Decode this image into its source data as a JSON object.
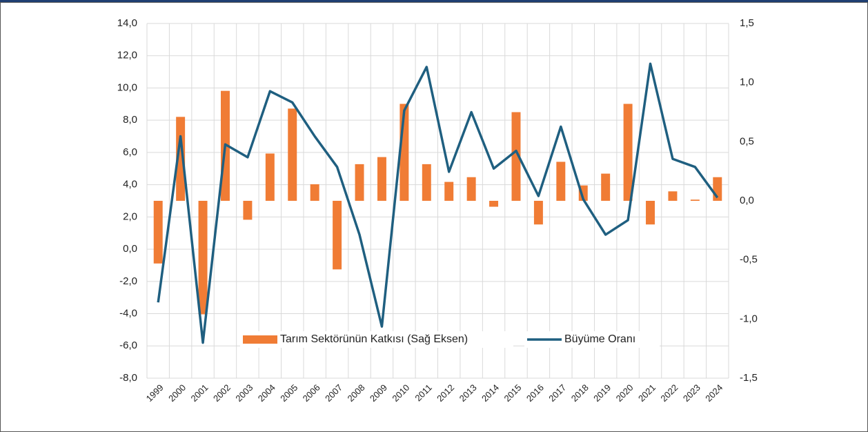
{
  "chart_data": {
    "type": "bar_line",
    "categories": [
      "1999",
      "2000",
      "2001",
      "2002",
      "2003",
      "2004",
      "2005",
      "2006",
      "2007",
      "2008",
      "2009",
      "2010",
      "2011",
      "2012",
      "2013",
      "2014",
      "2015",
      "2016",
      "2017",
      "2018",
      "2019",
      "2020",
      "2021",
      "2022",
      "2023",
      "2024"
    ],
    "series": [
      {
        "name": "Tarım Sektörünün Katkısı (Sağ Eksen)",
        "type": "bar",
        "axis": "y2",
        "color": "#f07c35",
        "values": [
          -0.53,
          0.71,
          -0.96,
          0.93,
          -0.16,
          0.4,
          0.78,
          0.14,
          -0.58,
          0.31,
          0.37,
          0.82,
          0.31,
          0.16,
          0.2,
          -0.05,
          0.75,
          -0.2,
          0.33,
          0.13,
          0.23,
          0.82,
          -0.2,
          0.08,
          0.01,
          0.2
        ]
      },
      {
        "name": "Büyüme Oranı",
        "type": "line",
        "axis": "y",
        "color": "#1f5f80",
        "values": [
          -3.3,
          7.0,
          -5.8,
          6.5,
          5.7,
          9.8,
          9.1,
          7.0,
          5.1,
          0.9,
          -4.8,
          8.6,
          11.3,
          4.8,
          8.5,
          5.0,
          6.1,
          3.3,
          7.6,
          3.1,
          0.9,
          1.8,
          11.5,
          5.6,
          5.1,
          3.2
        ]
      }
    ],
    "ylim": [
      -8,
      14
    ],
    "yticks": [
      {
        "value": -8,
        "label": "-8,0"
      },
      {
        "value": -6,
        "label": "-6,0"
      },
      {
        "value": -4,
        "label": "-4,0"
      },
      {
        "value": -2,
        "label": "-2,0"
      },
      {
        "value": 0,
        "label": "0,0"
      },
      {
        "value": 2,
        "label": "2,0"
      },
      {
        "value": 4,
        "label": "4,0"
      },
      {
        "value": 6,
        "label": "6,0"
      },
      {
        "value": 8,
        "label": "8,0"
      },
      {
        "value": 10,
        "label": "10,0"
      },
      {
        "value": 12,
        "label": "12,0"
      },
      {
        "value": 14,
        "label": "14,0"
      }
    ],
    "y2lim": [
      -1.5,
      1.5
    ],
    "y2ticks": [
      {
        "value": -1.5,
        "label": "-1,5"
      },
      {
        "value": -1,
        "label": "-1,0"
      },
      {
        "value": -0.5,
        "label": "-0,5"
      },
      {
        "value": 0,
        "label": "0,0"
      },
      {
        "value": 0.5,
        "label": "0,5"
      },
      {
        "value": 1,
        "label": "1,0"
      },
      {
        "value": 1.5,
        "label": "1,5"
      }
    ],
    "grid": true,
    "legend": "bottom"
  }
}
